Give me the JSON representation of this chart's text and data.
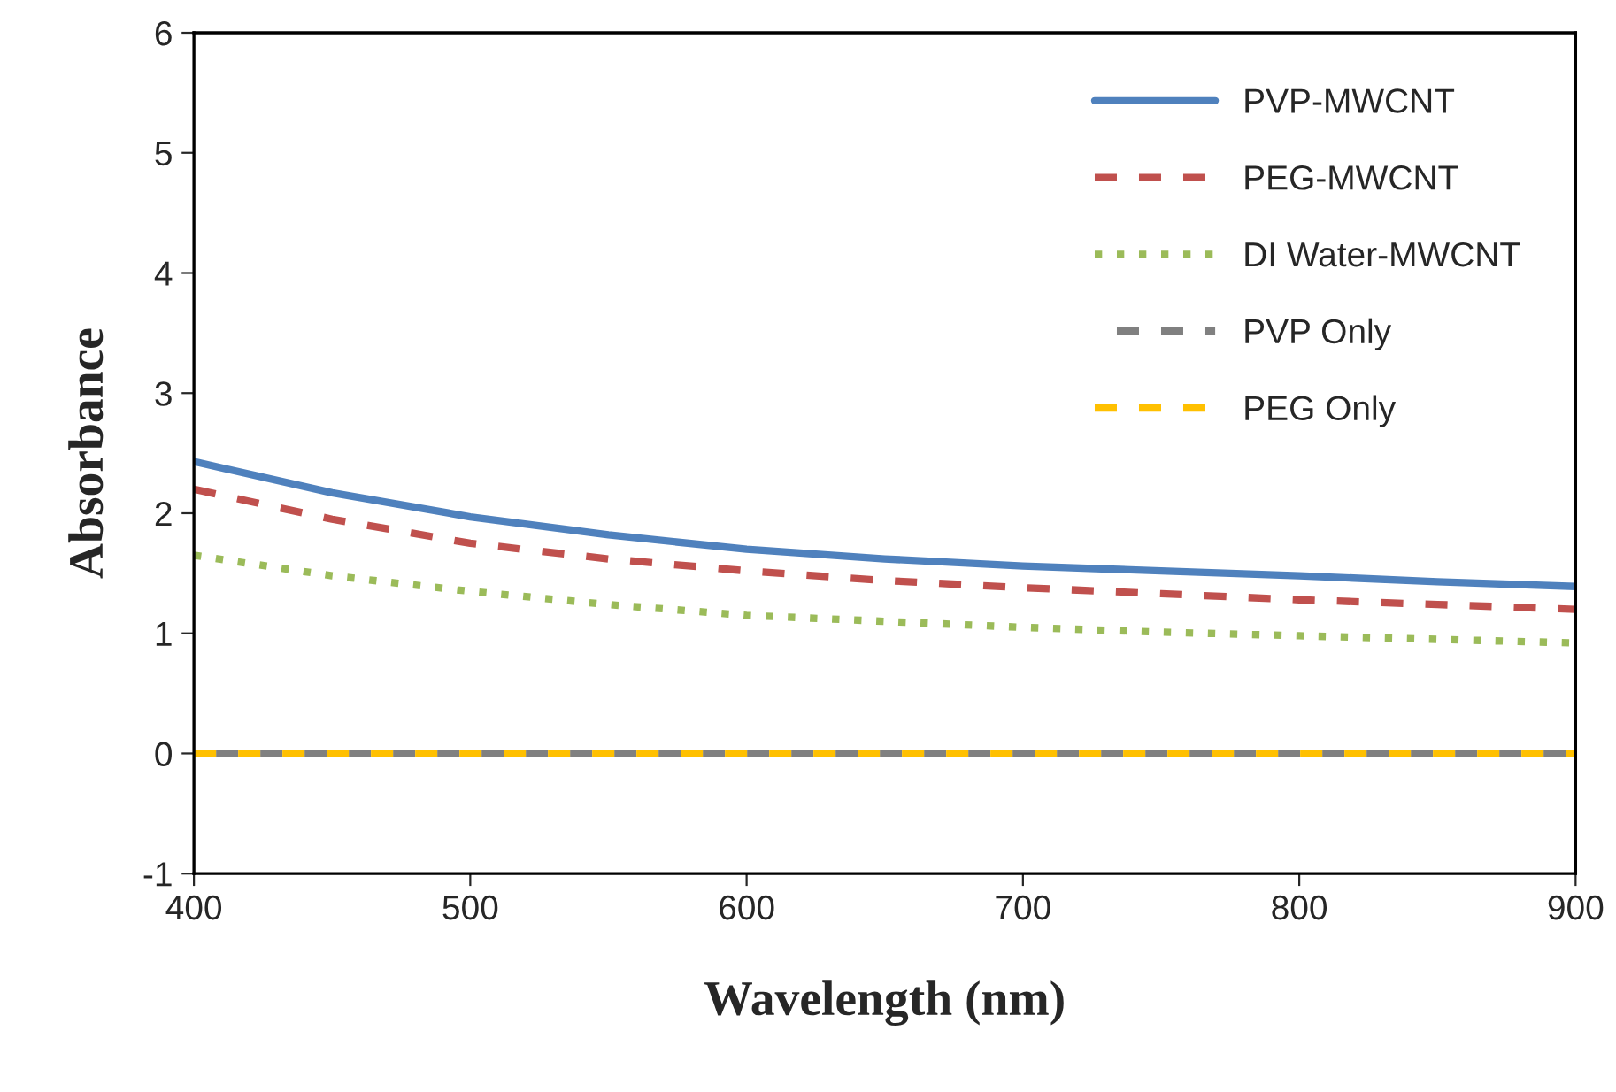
{
  "chart_data": {
    "type": "line",
    "xlabel": "Wavelength (nm)",
    "ylabel": "Absorbance",
    "xlim": [
      400,
      900
    ],
    "xticks": [
      400,
      500,
      600,
      700,
      800,
      900
    ],
    "ylim": [
      -1,
      6
    ],
    "yticks": [
      -1,
      0,
      1,
      2,
      3,
      4,
      5,
      6
    ],
    "grid": false,
    "legend": "top right",
    "marker": "none",
    "x": [
      400,
      450,
      500,
      550,
      600,
      650,
      700,
      750,
      800,
      850,
      900
    ],
    "series": [
      {
        "name": "PVP-MWCNT",
        "color": "#4f81bd",
        "line_style": "solid",
        "values": [
          2.43,
          2.17,
          1.97,
          1.82,
          1.7,
          1.62,
          1.56,
          1.52,
          1.48,
          1.43,
          1.39
        ]
      },
      {
        "name": "PEG-MWCNT",
        "color": "#c0504d",
        "line_style": "dashed",
        "values": [
          2.2,
          1.95,
          1.75,
          1.62,
          1.52,
          1.44,
          1.38,
          1.33,
          1.28,
          1.24,
          1.2
        ]
      },
      {
        "name": "DI Water-MWCNT",
        "color": "#9bbb59",
        "line_style": "dotted",
        "values": [
          1.65,
          1.48,
          1.35,
          1.24,
          1.15,
          1.1,
          1.05,
          1.01,
          0.98,
          0.95,
          0.92
        ]
      },
      {
        "name": "PVP Only",
        "color": "#808080",
        "line_style": "dashed",
        "values": [
          0,
          0,
          0,
          0,
          0,
          0,
          0,
          0,
          0,
          0,
          0
        ]
      },
      {
        "name": "PEG Only",
        "color": "#ffc000",
        "line_style": "dashed",
        "values": [
          0,
          0,
          0,
          0,
          0,
          0,
          0,
          0,
          0,
          0,
          0
        ]
      }
    ]
  }
}
